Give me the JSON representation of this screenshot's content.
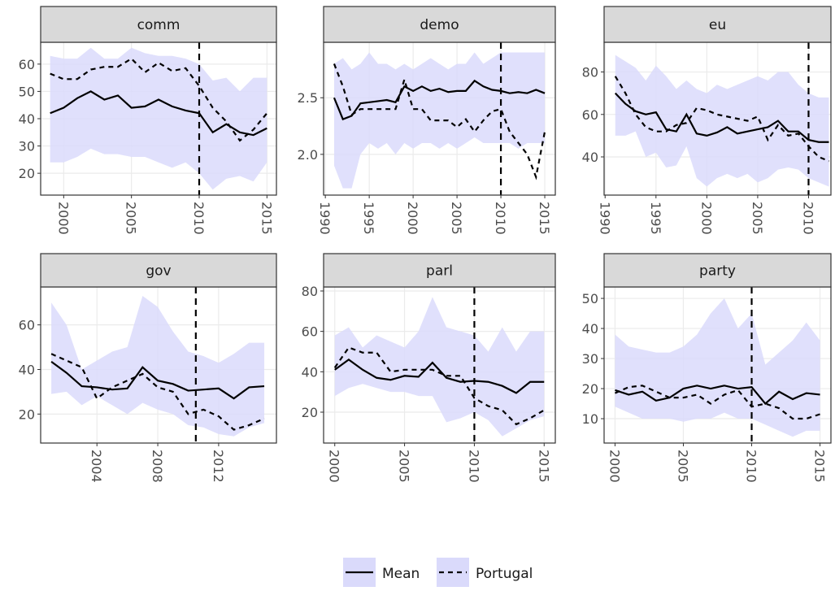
{
  "chart_data": [
    {
      "type": "line",
      "title": "comm",
      "x": [
        1999,
        2000,
        2001,
        2002,
        2003,
        2004,
        2005,
        2006,
        2007,
        2008,
        2009,
        2010,
        2011,
        2012,
        2013,
        2014,
        2015
      ],
      "xlim": [
        1998.3,
        2015.7
      ],
      "xticks": [
        2000,
        2005,
        2010,
        2015
      ],
      "ylim": [
        12,
        68
      ],
      "yticks": [
        20,
        30,
        40,
        50,
        60
      ],
      "grid": true,
      "vline": 2010,
      "ribbon": {
        "color": "#dadafb",
        "lower": [
          24,
          24,
          26,
          29,
          27,
          27,
          26,
          26,
          24,
          22,
          24,
          20,
          14,
          18,
          19,
          17,
          24
        ],
        "upper": [
          63,
          62,
          62,
          66,
          62,
          62,
          66,
          64,
          63,
          63,
          62,
          60,
          54,
          55,
          50,
          55,
          55
        ]
      },
      "series": [
        {
          "name": "Mean",
          "color": "#000000",
          "linestyle": "solid",
          "values": [
            42,
            44,
            47.5,
            50,
            47,
            48.5,
            44,
            44.5,
            47,
            44.5,
            43,
            42,
            35,
            38,
            35,
            34,
            36.5
          ]
        },
        {
          "name": "Portugal",
          "color": "#000000",
          "linestyle": "dashed",
          "values": [
            56.5,
            54.5,
            54.5,
            58,
            59,
            59,
            62,
            57,
            60.5,
            57.5,
            58.5,
            52,
            44,
            39,
            32,
            36,
            42
          ]
        }
      ]
    },
    {
      "type": "line",
      "title": "demo",
      "x": [
        1991,
        1992,
        1993,
        1994,
        1995,
        1996,
        1997,
        1998,
        1999,
        2000,
        2001,
        2002,
        2003,
        2004,
        2005,
        2006,
        2007,
        2008,
        2009,
        2010,
        2011,
        2012,
        2013,
        2014,
        2015
      ],
      "xlim": [
        1989.8,
        2016.2
      ],
      "xticks": [
        1990,
        1995,
        2000,
        2005,
        2010,
        2015
      ],
      "ylim": [
        1.64,
        2.99
      ],
      "yticks": [
        {
          "value": 2,
          "label": "2.0"
        },
        2.5
      ],
      "grid": true,
      "vline": 2010,
      "ribbon": {
        "color": "#dadafb",
        "lower": [
          1.9,
          1.7,
          1.7,
          2.0,
          2.1,
          2.05,
          2.1,
          2.0,
          2.1,
          2.05,
          2.1,
          2.1,
          2.05,
          2.1,
          2.05,
          2.1,
          2.15,
          2.1,
          2.1,
          2.1,
          2.1,
          2.05,
          2.1,
          2.1,
          2.1
        ],
        "upper": [
          2.8,
          2.85,
          2.75,
          2.8,
          2.9,
          2.8,
          2.8,
          2.75,
          2.8,
          2.75,
          2.8,
          2.85,
          2.8,
          2.75,
          2.8,
          2.8,
          2.9,
          2.8,
          2.85,
          2.9,
          2.9,
          2.9,
          2.9,
          2.9,
          2.9
        ]
      },
      "series": [
        {
          "name": "Mean",
          "color": "#000000",
          "linestyle": "solid",
          "values": [
            2.5,
            2.31,
            2.34,
            2.45,
            2.46,
            2.47,
            2.48,
            2.46,
            2.6,
            2.56,
            2.6,
            2.56,
            2.58,
            2.55,
            2.56,
            2.56,
            2.65,
            2.6,
            2.57,
            2.56,
            2.54,
            2.55,
            2.54,
            2.57,
            2.54
          ]
        },
        {
          "name": "Portugal",
          "color": "#000000",
          "linestyle": "dashed",
          "values": [
            2.8,
            2.6,
            2.35,
            2.4,
            2.4,
            2.4,
            2.4,
            2.4,
            2.66,
            2.4,
            2.4,
            2.3,
            2.3,
            2.3,
            2.24,
            2.31,
            2.2,
            2.3,
            2.38,
            2.4,
            2.2,
            2.1,
            2.0,
            1.8,
            2.2
          ]
        }
      ]
    },
    {
      "type": "line",
      "title": "eu",
      "x": [
        1991,
        1992,
        1993,
        1994,
        1995,
        1996,
        1997,
        1998,
        1999,
        2000,
        2001,
        2002,
        2003,
        2004,
        2005,
        2006,
        2007,
        2008,
        2009,
        2010,
        2011,
        2012
      ],
      "xlim": [
        1989.9,
        2012.2
      ],
      "xticks": [
        1990,
        1995,
        2000,
        2005,
        2010
      ],
      "ylim": [
        22,
        94
      ],
      "yticks": [
        40,
        60,
        80
      ],
      "grid": true,
      "vline": 2010,
      "ribbon": {
        "color": "#dadafb",
        "lower": [
          50,
          50,
          52,
          40,
          42,
          35,
          36,
          45,
          30,
          26,
          30,
          32,
          30,
          32,
          28,
          30,
          34,
          35,
          34,
          30,
          28,
          26
        ],
        "upper": [
          88,
          85,
          82,
          76,
          83,
          78,
          72,
          76,
          72,
          70,
          74,
          72,
          74,
          76,
          78,
          76,
          80,
          80,
          74,
          70,
          68,
          68
        ]
      },
      "series": [
        {
          "name": "Mean",
          "color": "#000000",
          "linestyle": "solid",
          "values": [
            70,
            65,
            61.5,
            60,
            61,
            53,
            52,
            60,
            51,
            50,
            51.5,
            54,
            51,
            52,
            53,
            54,
            57,
            52,
            52,
            48,
            47,
            47
          ]
        },
        {
          "name": "Portugal",
          "color": "#000000",
          "linestyle": "dashed",
          "values": [
            78,
            70,
            60,
            54,
            52,
            52,
            55,
            56,
            63,
            62,
            60,
            59,
            58,
            57,
            59,
            48,
            55,
            50,
            51,
            45,
            40,
            38
          ]
        }
      ]
    },
    {
      "type": "line",
      "title": "gov",
      "x": [
        2001,
        2002,
        2003,
        2004,
        2005,
        2006,
        2007,
        2008,
        2009,
        2010,
        2011,
        2012,
        2013,
        2014,
        2015
      ],
      "xlim": [
        2000.3,
        2015.8
      ],
      "xticks": [
        2004,
        2008,
        2012
      ],
      "ylim": [
        7,
        77
      ],
      "yticks": [
        20,
        40,
        60
      ],
      "grid": true,
      "vline": 2010.5,
      "ribbon": {
        "color": "#dadafb",
        "lower": [
          29,
          30,
          24,
          28,
          24,
          20,
          25,
          22,
          20,
          15,
          14,
          11,
          10,
          14,
          16
        ],
        "upper": [
          70,
          60,
          40,
          44,
          48,
          50,
          73,
          68,
          57,
          48,
          46,
          43,
          47,
          52,
          52
        ]
      },
      "series": [
        {
          "name": "Mean",
          "color": "#000000",
          "linestyle": "solid",
          "values": [
            43.5,
            38.5,
            32.5,
            32,
            31,
            31.5,
            41,
            35,
            33.5,
            30.5,
            31,
            31.5,
            27,
            32,
            32.5
          ]
        },
        {
          "name": "Portugal",
          "color": "#000000",
          "linestyle": "dashed",
          "values": [
            47,
            44,
            41,
            27,
            32,
            35,
            38,
            32,
            30,
            20,
            22,
            19,
            13,
            15,
            18
          ]
        }
      ]
    },
    {
      "type": "line",
      "title": "parl",
      "x": [
        2000,
        2001,
        2002,
        2003,
        2004,
        2005,
        2006,
        2007,
        2008,
        2009,
        2010,
        2011,
        2012,
        2013,
        2014,
        2015
      ],
      "xlim": [
        1999.2,
        2015.8
      ],
      "xticks": [
        2000,
        2005,
        2010,
        2015
      ],
      "ylim": [
        4.7,
        82
      ],
      "yticks": [
        20,
        40,
        60,
        80
      ],
      "grid": true,
      "vline": 2010,
      "ribbon": {
        "color": "#dadafb",
        "lower": [
          28,
          32,
          34,
          32,
          30,
          30,
          28,
          28,
          15,
          17,
          20,
          16,
          8,
          12,
          16,
          18
        ],
        "upper": [
          58,
          62,
          52,
          58,
          55,
          52,
          60,
          77,
          62,
          60,
          58,
          50,
          62,
          50,
          60,
          60
        ]
      },
      "series": [
        {
          "name": "Mean",
          "color": "#000000",
          "linestyle": "solid",
          "values": [
            41,
            46,
            41,
            37,
            36,
            38,
            37.5,
            44.5,
            37,
            35,
            35.5,
            35,
            33,
            29.5,
            35,
            35
          ]
        },
        {
          "name": "Portugal",
          "color": "#000000",
          "linestyle": "dashed",
          "values": [
            42,
            52,
            49.5,
            49.5,
            40,
            41,
            41,
            41,
            38,
            38,
            27,
            23,
            21,
            14,
            17,
            21
          ]
        }
      ]
    },
    {
      "type": "line",
      "title": "party",
      "x": [
        2000,
        2001,
        2002,
        2003,
        2004,
        2005,
        2006,
        2007,
        2008,
        2009,
        2010,
        2011,
        2012,
        2013,
        2014,
        2015
      ],
      "xlim": [
        1999.2,
        2015.8
      ],
      "xticks": [
        2000,
        2005,
        2010,
        2015
      ],
      "ylim": [
        1.9,
        53.8
      ],
      "yticks": [
        10,
        20,
        30,
        40,
        50
      ],
      "grid": true,
      "vline": 2010,
      "ribbon": {
        "color": "#dadafb",
        "lower": [
          14,
          12,
          10,
          10,
          10,
          9,
          10,
          10,
          12,
          10,
          10,
          8,
          6,
          4,
          6,
          6
        ],
        "upper": [
          38,
          34,
          33,
          32,
          32,
          34,
          38,
          45,
          50,
          40,
          45,
          28,
          32,
          36,
          42,
          36
        ]
      },
      "series": [
        {
          "name": "Mean",
          "color": "#000000",
          "linestyle": "solid",
          "values": [
            19.5,
            18,
            19,
            16,
            17,
            20,
            21,
            20,
            21,
            20,
            20.5,
            15,
            19,
            16.5,
            18.5,
            18
          ]
        },
        {
          "name": "Portugal",
          "color": "#000000",
          "linestyle": "dashed",
          "values": [
            18.5,
            20.5,
            21,
            19,
            17,
            17,
            18,
            15,
            18,
            19.5,
            14,
            15,
            13.5,
            10,
            10,
            11.5
          ]
        }
      ]
    }
  ]
}
